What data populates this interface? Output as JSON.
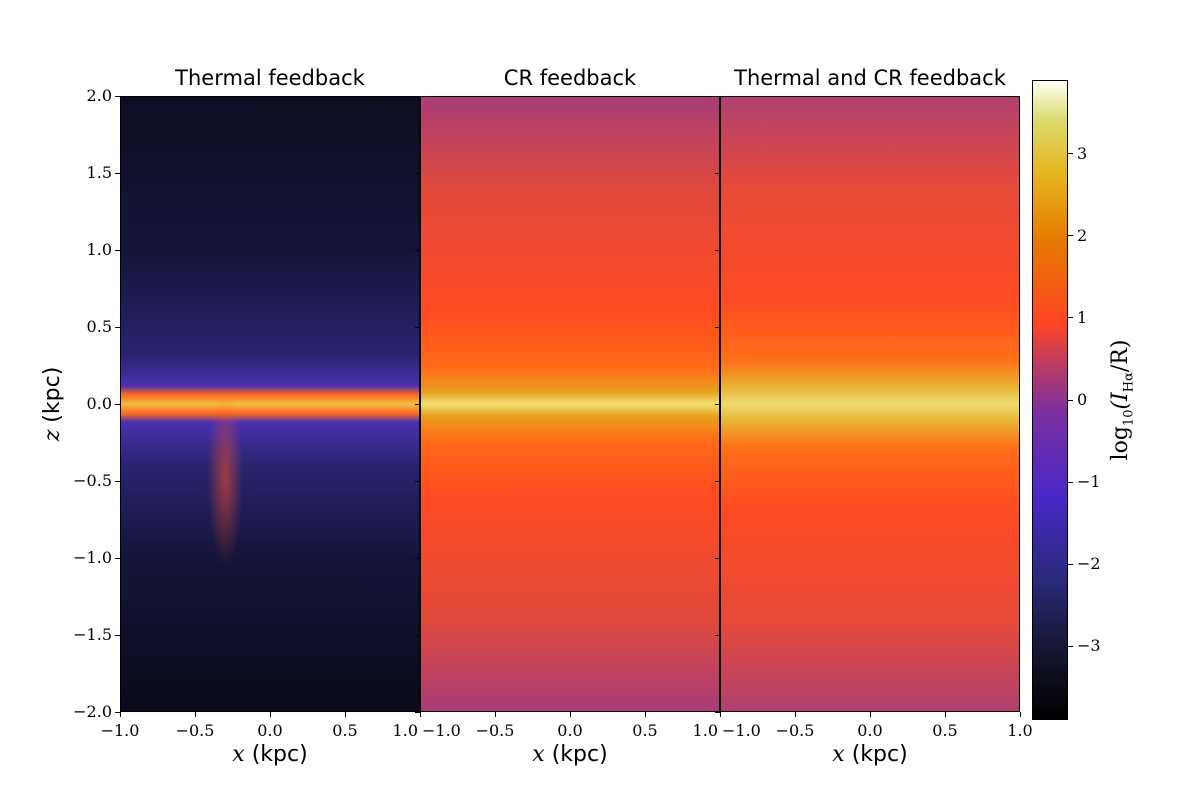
{
  "chart_data": {
    "type": "heatmap",
    "panels": [
      {
        "title": "Thermal feedback"
      },
      {
        "title": "CR feedback"
      },
      {
        "title": "Thermal and CR feedback"
      }
    ],
    "xlabel": {
      "var": "x",
      "unit": "(kpc)"
    },
    "ylabel": {
      "var": "z",
      "unit": "(kpc)"
    },
    "xlim": [
      -1.0,
      1.0
    ],
    "ylim": [
      -2.0,
      2.0
    ],
    "xticks": [
      "−1.0",
      "−0.5",
      "0.0",
      "0.5",
      "1.0"
    ],
    "xtick_values": [
      -1.0,
      -0.5,
      0.0,
      0.5,
      1.0
    ],
    "yticks": [
      "−2.0",
      "−1.5",
      "−1.0",
      "−0.5",
      "0.0",
      "0.5",
      "1.0",
      "1.5",
      "2.0"
    ],
    "ytick_values": [
      -2.0,
      -1.5,
      -1.0,
      -0.5,
      0.0,
      0.5,
      1.0,
      1.5,
      2.0
    ],
    "colorbar": {
      "label_pre": "log",
      "label_sub": "10",
      "label_mid": "(I",
      "label_sub2": "Hα",
      "label_post": "/R)",
      "range": [
        -3.9,
        3.9
      ],
      "ticks": [
        "−3",
        "−2",
        "−1",
        "0",
        "1",
        "2",
        "3"
      ],
      "tick_values": [
        -3,
        -2,
        -1,
        0,
        1,
        2,
        3
      ]
    }
  }
}
